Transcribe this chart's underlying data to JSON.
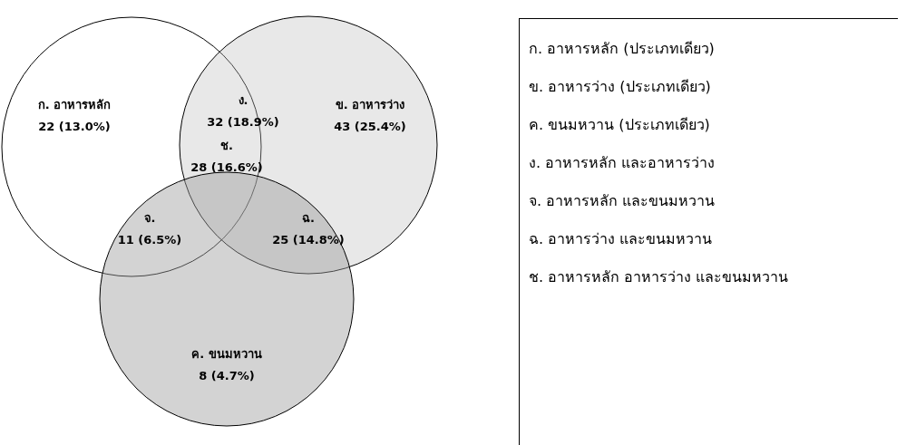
{
  "chart_data": {
    "type": "other",
    "categories": [
      "ก. อาหารหลัก",
      "ข. อาหารว่าง",
      "ค. ขนมหวาน",
      "ง.",
      "จ.",
      "ฉ.",
      "ช."
    ],
    "values": [
      22,
      43,
      8,
      32,
      11,
      25,
      28
    ],
    "value_labels": [
      "22 (13.0%)",
      "43 (25.4%)",
      "8 (4.7%)",
      "32 (18.9%)",
      "11 (6.5%)",
      "25 (14.8%)",
      "28 (16.6%)"
    ],
    "annotations": [
      "ก. อาหารหลัก (ประเภทเดียว)",
      "ข. อาหารว่าง (ประเภทเดียว)",
      "ค. ขนมหวาน (ประเภทเดียว)",
      "ง. อาหารหลัก และอาหารว่าง",
      "จ. อาหารหลัก และขนมหวาน",
      "ฉ. อาหารว่าง และขนมหวาน",
      "ช. อาหารหลัก อาหารว่าง และขนมหวาน"
    ]
  }
}
